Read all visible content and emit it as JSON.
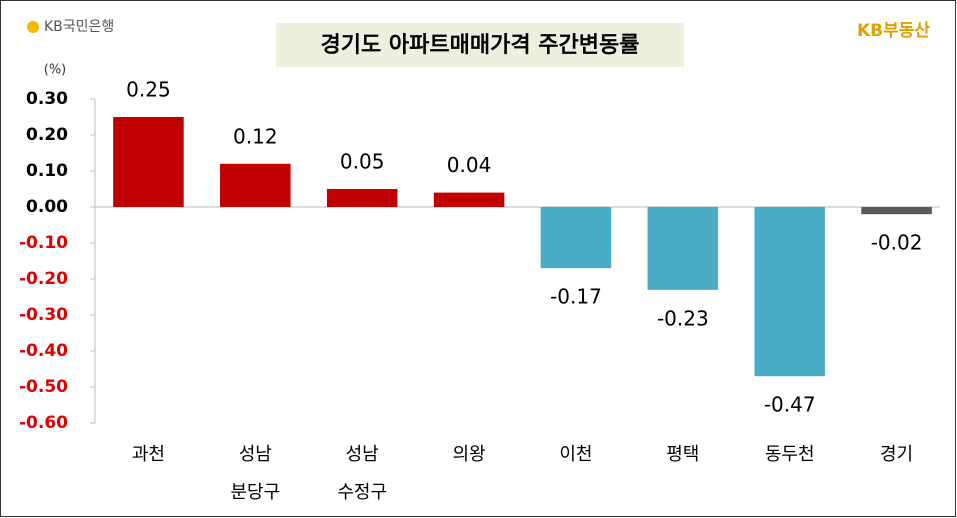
{
  "chart_data": {
    "type": "bar",
    "title": "경기도 아파트매매가격 주간변동률",
    "logos": [
      "KB국민은행",
      "KB부동산"
    ],
    "y_unit": "(%)",
    "categories": [
      [
        "과천"
      ],
      [
        "성남",
        "분당구"
      ],
      [
        "성남",
        "수정구"
      ],
      [
        "의왕"
      ],
      [
        "이천"
      ],
      [
        "평택"
      ],
      [
        "동두천"
      ],
      [
        "경기"
      ]
    ],
    "values": [
      0.25,
      0.12,
      0.05,
      0.04,
      -0.17,
      -0.23,
      -0.47,
      -0.02
    ],
    "colors": [
      "#c00000",
      "#c00000",
      "#c00000",
      "#c00000",
      "#4bacc6",
      "#4bacc6",
      "#4bacc6",
      "#595959"
    ],
    "ylim": [
      -0.6,
      0.3
    ],
    "yticks": [
      {
        "value": 0.3,
        "label": "0.30"
      },
      {
        "value": 0.2,
        "label": "0.20"
      },
      {
        "value": 0.1,
        "label": "0.10"
      },
      {
        "value": 0,
        "label": "0.00"
      },
      {
        "value": -0.1,
        "label": "-0.10"
      },
      {
        "value": -0.2,
        "label": "-0.20"
      },
      {
        "value": -0.3,
        "label": "-0.30"
      },
      {
        "value": -0.4,
        "label": "-0.40"
      },
      {
        "value": -0.5,
        "label": "-0.50"
      },
      {
        "value": -0.6,
        "label": "-0.60"
      }
    ],
    "negative_tick_color": "#e00000",
    "grid": false
  }
}
